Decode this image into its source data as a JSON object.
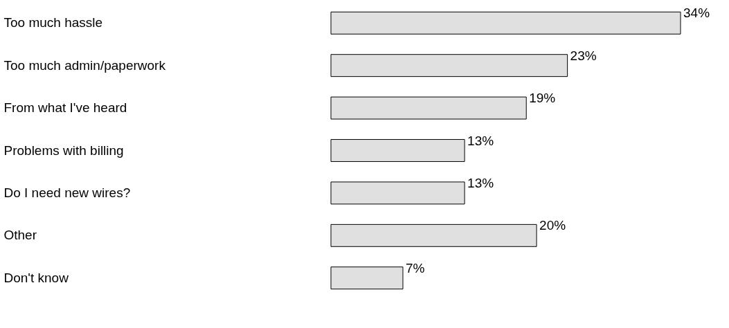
{
  "chart_data": {
    "type": "bar",
    "orientation": "horizontal",
    "categories": [
      "Too much hassle",
      "Too much admin/paperwork",
      "From what I've heard",
      "Problems with billing",
      "Do I need new wires?",
      "Other",
      "Don't know"
    ],
    "values": [
      34,
      23,
      19,
      13,
      13,
      20,
      7
    ],
    "value_labels": [
      "34%",
      "23%",
      "19%",
      "13%",
      "13%",
      "20%",
      "7%"
    ],
    "color": "#e0e0e0"
  }
}
